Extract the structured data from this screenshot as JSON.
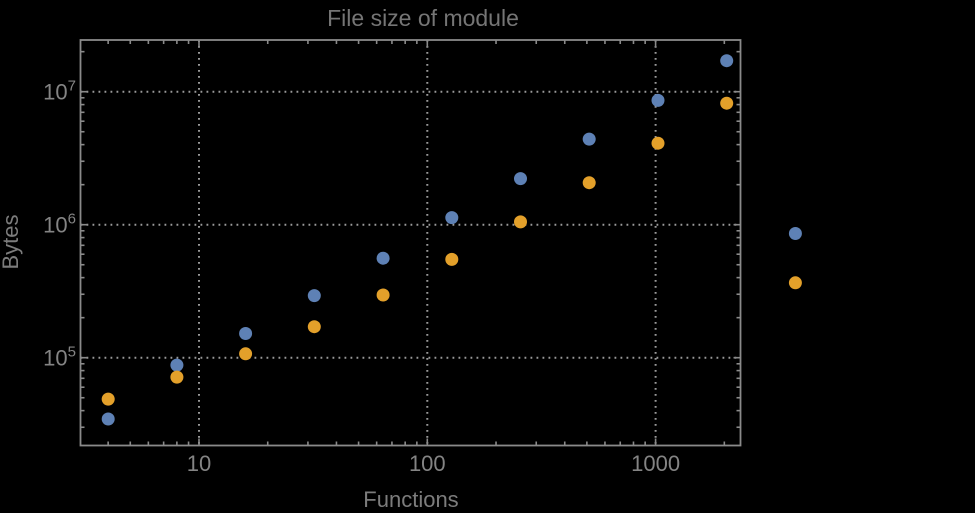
{
  "window": {
    "background_color": "#000000"
  },
  "chart_data": {
    "type": "scatter",
    "title": "File size of module",
    "xlabel": "Functions",
    "ylabel": "Bytes",
    "x_scale": "log10",
    "y_scale": "log10",
    "x_range": [
      3.0,
      2360
    ],
    "y_range": [
      22000,
      24500000
    ],
    "grid": "dotted gray lines at powers of ten, on",
    "legend": "none",
    "frame": "boxed frame with inward ticks on all four sides",
    "x": [
      4,
      8,
      16,
      32,
      64,
      128,
      256,
      512,
      1024,
      2048,
      4096
    ],
    "series": [
      {
        "name": "series-blue",
        "color": "#5E81B5",
        "values": [
          34600,
          88000,
          152000,
          293000,
          560000,
          1130000,
          2220000,
          4400000,
          8600000,
          17100000,
          858000
        ]
      },
      {
        "name": "series-orange",
        "color": "#E3A02A",
        "values": [
          48800,
          71500,
          107000,
          171000,
          296000,
          548000,
          1050000,
          2070000,
          4100000,
          8200000,
          366000
        ]
      }
    ],
    "x_ticks": [
      {
        "value": 10,
        "label": "10"
      },
      {
        "value": 100,
        "label": "100"
      },
      {
        "value": 1000,
        "label": "1000"
      }
    ],
    "y_ticks": [
      {
        "value": 100000,
        "base": "10",
        "exp": "5"
      },
      {
        "value": 1000000,
        "base": "10",
        "exp": "6"
      },
      {
        "value": 10000000,
        "base": "10",
        "exp": "7"
      }
    ],
    "note_visible_overflow": "the two points at the largest x value are drawn beyond the right edge of the frame"
  },
  "style_colors": {
    "title_text": "#757575",
    "axis_label_text": "#7c7c7c",
    "tick_label_text": "#848484",
    "frame_line": "#8a8a8a",
    "grid_line": "#9a9a9a",
    "point_blue": "#5E81B5",
    "point_orange": "#E3A02A"
  }
}
